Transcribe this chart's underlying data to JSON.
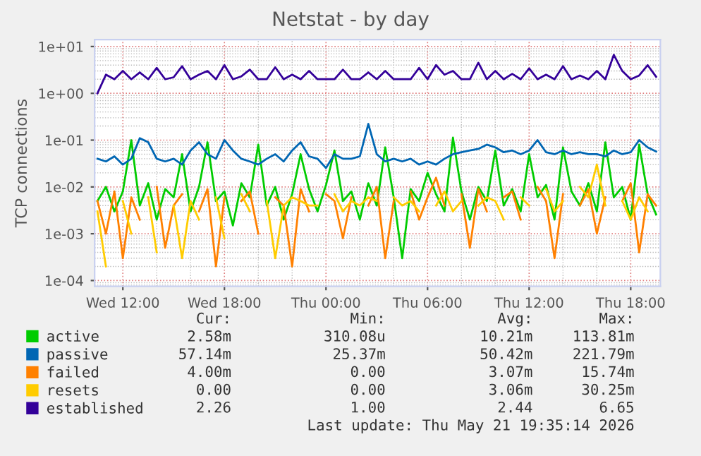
{
  "chart_data": {
    "type": "line",
    "title": "Netstat - by day",
    "ylabel": "TCP connections",
    "log": true,
    "grid": true,
    "legend": "bottom",
    "marker": "none",
    "line_style": "solid",
    "x": [
      "2026-05-20T10:30",
      "2026-05-20T11:00",
      "2026-05-20T11:30",
      "2026-05-20T12:00",
      "2026-05-20T12:30",
      "2026-05-20T13:00",
      "2026-05-20T13:30",
      "2026-05-20T14:00",
      "2026-05-20T14:30",
      "2026-05-20T15:00",
      "2026-05-20T15:30",
      "2026-05-20T16:00",
      "2026-05-20T16:30",
      "2026-05-20T17:00",
      "2026-05-20T17:30",
      "2026-05-20T18:00",
      "2026-05-20T18:30",
      "2026-05-20T19:00",
      "2026-05-20T19:30",
      "2026-05-20T20:00",
      "2026-05-20T20:30",
      "2026-05-20T21:00",
      "2026-05-20T21:30",
      "2026-05-20T22:00",
      "2026-05-20T22:30",
      "2026-05-20T23:00",
      "2026-05-20T23:30",
      "2026-05-21T00:00",
      "2026-05-21T00:30",
      "2026-05-21T01:00",
      "2026-05-21T01:30",
      "2026-05-21T02:00",
      "2026-05-21T02:30",
      "2026-05-21T03:00",
      "2026-05-21T03:30",
      "2026-05-21T04:00",
      "2026-05-21T04:30",
      "2026-05-21T05:00",
      "2026-05-21T05:30",
      "2026-05-21T06:00",
      "2026-05-21T06:30",
      "2026-05-21T07:00",
      "2026-05-21T07:30",
      "2026-05-21T08:00",
      "2026-05-21T08:30",
      "2026-05-21T09:00",
      "2026-05-21T09:30",
      "2026-05-21T10:00",
      "2026-05-21T10:30",
      "2026-05-21T11:00",
      "2026-05-21T11:30",
      "2026-05-21T12:00",
      "2026-05-21T12:30",
      "2026-05-21T13:00",
      "2026-05-21T13:30",
      "2026-05-21T14:00",
      "2026-05-21T14:30",
      "2026-05-21T15:00",
      "2026-05-21T15:30",
      "2026-05-21T16:00",
      "2026-05-21T16:30",
      "2026-05-21T17:00",
      "2026-05-21T17:30",
      "2026-05-21T18:00",
      "2026-05-21T18:30",
      "2026-05-21T19:00",
      "2026-05-21T19:30"
    ],
    "xlim": [
      "2026-05-20T10:20",
      "2026-05-21T19:45"
    ],
    "xticks": [
      {
        "value": "2026-05-20T12:00",
        "label": "Wed 12:00"
      },
      {
        "value": "2026-05-20T18:00",
        "label": "Wed 18:00"
      },
      {
        "value": "2026-05-21T00:00",
        "label": "Thu 00:00"
      },
      {
        "value": "2026-05-21T06:00",
        "label": "Thu 06:00"
      },
      {
        "value": "2026-05-21T12:00",
        "label": "Thu 12:00"
      },
      {
        "value": "2026-05-21T18:00",
        "label": "Thu 18:00"
      }
    ],
    "ylim": [
      7.5e-05,
      14
    ],
    "yticks": [
      {
        "value": 0.0001,
        "label": "1e-04"
      },
      {
        "value": 0.001,
        "label": "1e-03"
      },
      {
        "value": 0.01,
        "label": "1e-02"
      },
      {
        "value": 0.1,
        "label": "1e-01"
      },
      {
        "value": 1,
        "label": "1e+00"
      },
      {
        "value": 10,
        "label": "1e+01"
      }
    ],
    "series": [
      {
        "name": "active",
        "color": "#00cc00",
        "values": [
          0.005,
          0.01,
          0.003,
          0.008,
          0.1,
          0.004,
          0.012,
          0.002,
          0.009,
          0.006,
          0.05,
          0.003,
          0.01,
          0.09,
          0.005,
          0.008,
          0.0015,
          0.012,
          0.006,
          0.08,
          0.004,
          0.01,
          0.002,
          0.007,
          0.05,
          0.009,
          0.003,
          0.011,
          0.06,
          0.005,
          0.008,
          0.002,
          0.012,
          0.004,
          0.07,
          0.006,
          0.0003,
          0.009,
          0.005,
          0.02,
          0.007,
          0.003,
          0.113,
          0.008,
          0.002,
          0.01,
          0.005,
          0.06,
          0.004,
          0.009,
          0.003,
          0.05,
          0.006,
          0.011,
          0.002,
          0.07,
          0.008,
          0.004,
          0.012,
          0.003,
          0.09,
          0.006,
          0.01,
          0.002,
          0.08,
          0.007,
          0.00258
        ]
      },
      {
        "name": "passive",
        "color": "#0066b3",
        "values": [
          0.04,
          0.035,
          0.045,
          0.03,
          0.04,
          0.11,
          0.09,
          0.04,
          0.035,
          0.04,
          0.03,
          0.06,
          0.09,
          0.05,
          0.04,
          0.1,
          0.06,
          0.04,
          0.035,
          0.03,
          0.04,
          0.05,
          0.035,
          0.06,
          0.09,
          0.045,
          0.04,
          0.0254,
          0.05,
          0.04,
          0.04,
          0.045,
          0.222,
          0.05,
          0.035,
          0.04,
          0.035,
          0.04,
          0.03,
          0.035,
          0.03,
          0.04,
          0.05,
          0.055,
          0.06,
          0.065,
          0.08,
          0.07,
          0.055,
          0.06,
          0.05,
          0.06,
          0.1,
          0.055,
          0.05,
          0.06,
          0.05,
          0.055,
          0.05,
          0.05,
          0.045,
          0.06,
          0.05,
          0.055,
          0.1,
          0.07,
          0.057
        ]
      },
      {
        "name": "failed",
        "color": "#ff8000",
        "values": [
          0.005,
          0.001,
          0.008,
          0.0003,
          0.006,
          0.002,
          null,
          0.01,
          0.0005,
          0.004,
          0.007,
          null,
          0.003,
          0.009,
          0.0002,
          0.006,
          null,
          0.005,
          0.008,
          0.001,
          null,
          0.006,
          0.004,
          0.0002,
          0.009,
          0.003,
          null,
          0.007,
          0.005,
          0.0008,
          0.006,
          null,
          0.004,
          0.01,
          0.0003,
          0.005,
          null,
          0.008,
          0.002,
          0.006,
          0.0157,
          0.004,
          null,
          0.007,
          0.0005,
          0.009,
          0.003,
          null,
          0.006,
          0.008,
          0.002,
          null,
          0.01,
          0.005,
          0.0003,
          0.007,
          null,
          0.004,
          0.009,
          0.001,
          0.006,
          null,
          0.005,
          0.012,
          0.0004,
          0.007,
          0.004
        ]
      },
      {
        "name": "resets",
        "color": "#ffcc00",
        "values": [
          0.003,
          0.0002,
          null,
          0.005,
          0.001,
          null,
          0.006,
          0.0004,
          null,
          0.004,
          0.0003,
          0.005,
          0.002,
          null,
          0.006,
          0.0008,
          null,
          0.007,
          0.003,
          null,
          0.005,
          0.0003,
          0.004,
          0.006,
          0.005,
          0.004,
          0.004,
          null,
          0.007,
          0.003,
          0.005,
          0.004,
          0.006,
          0.005,
          null,
          0.006,
          0.004,
          0.005,
          0.003,
          null,
          0.004,
          0.008,
          0.003,
          0.005,
          null,
          0.004,
          0.006,
          0.005,
          0.002,
          null,
          0.006,
          0.004,
          null,
          0.009,
          0.003,
          0.005,
          null,
          0.01,
          0.006,
          0.03,
          0.004,
          null,
          0.005,
          0.002,
          0.006,
          0.003,
          null
        ]
      },
      {
        "name": "established",
        "color": "#330099",
        "values": [
          1.0,
          2.5,
          2,
          3,
          2,
          2.8,
          2,
          3.5,
          2,
          2.2,
          3.8,
          2,
          2.5,
          3,
          2,
          4,
          2,
          2.3,
          3.2,
          2,
          2,
          3.6,
          2,
          2.5,
          2,
          3,
          2,
          2,
          2,
          3.2,
          2,
          2,
          2.8,
          2,
          3,
          2,
          2,
          2,
          3.5,
          2,
          4,
          2.5,
          3,
          2,
          2,
          4.5,
          2,
          3,
          2,
          2.6,
          2,
          3.4,
          2,
          2.5,
          2,
          3.8,
          2,
          2.4,
          2,
          3,
          2,
          6.65,
          3,
          2,
          2.4,
          4,
          2.26
        ]
      }
    ],
    "annotations": [
      "Cur:",
      "Min:",
      "Avg:",
      "Max:",
      "2.58m",
      "310.08u",
      "10.21m",
      "113.81m",
      "57.14m",
      "25.37m",
      "50.42m",
      "221.79m",
      "4.00m",
      "0.00",
      "3.07m",
      "15.74m",
      "0.00",
      "0.00",
      "3.06m",
      "30.25m",
      "2.26",
      "1.00",
      "2.44",
      "6.65",
      "Last update: Thu May 21 19:35:14 2026"
    ]
  }
}
